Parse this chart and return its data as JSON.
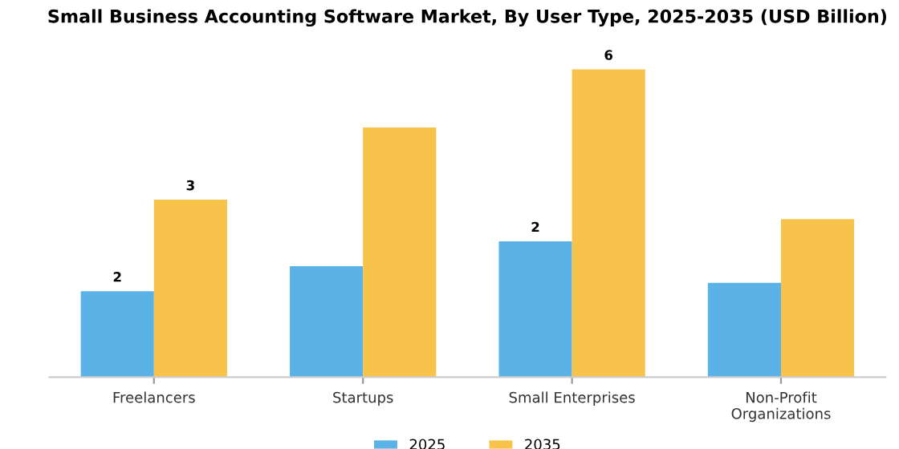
{
  "chart_data": {
    "type": "bar",
    "title": "Small Business Accounting Software Market, By User Type, 2025-2035 (USD Billion)",
    "categories": [
      "Freelancers",
      "Startups",
      "Small Enterprises",
      "Non-Profit\nOrganizations"
    ],
    "tick_labels": "x",
    "series": [
      {
        "name": "2025",
        "color": "#5ab2e6",
        "values": [
          1.55,
          2.0,
          2.45,
          1.7
        ],
        "value_labels": [
          "2",
          null,
          "2",
          null
        ]
      },
      {
        "name": "2035",
        "color": "#f8c34a",
        "values": [
          3.2,
          4.5,
          5.55,
          2.85
        ],
        "value_labels": [
          "3",
          null,
          "6",
          null
        ]
      }
    ],
    "legend": "bottom",
    "grid": false
  }
}
